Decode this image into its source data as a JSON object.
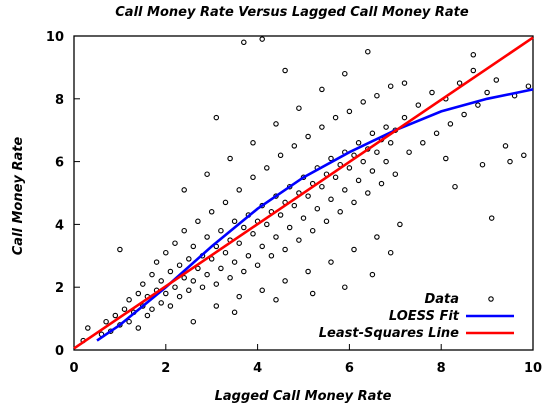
{
  "chart_data": {
    "type": "scatter",
    "title": "Call Money Rate Versus Lagged Call Money Rate",
    "xlabel": "Lagged Call Money Rate",
    "ylabel": "Call Money Rate",
    "xlim": [
      0,
      10
    ],
    "ylim": [
      0,
      10
    ],
    "xticks": [
      "0",
      "2",
      "4",
      "6",
      "8",
      "10"
    ],
    "yticks": [
      "0",
      "2",
      "4",
      "6",
      "8",
      "10"
    ],
    "grid": false,
    "legend_position": "bottom-right",
    "legend": [
      "Data",
      "LOESS Fit",
      "Least-Squares Line"
    ],
    "colors": {
      "data": "#000000",
      "loess": "#0000ff",
      "least_squares": "#ff0000"
    },
    "series": [
      {
        "name": "Data",
        "kind": "scatter",
        "points": [
          [
            0.2,
            0.3
          ],
          [
            0.3,
            0.7
          ],
          [
            0.6,
            0.5
          ],
          [
            0.7,
            0.9
          ],
          [
            0.8,
            0.6
          ],
          [
            0.9,
            1.1
          ],
          [
            1.0,
            0.8
          ],
          [
            1.0,
            3.2
          ],
          [
            1.1,
            1.3
          ],
          [
            1.2,
            0.9
          ],
          [
            1.2,
            1.6
          ],
          [
            1.3,
            1.2
          ],
          [
            1.4,
            1.8
          ],
          [
            1.4,
            0.7
          ],
          [
            1.5,
            1.4
          ],
          [
            1.5,
            2.1
          ],
          [
            1.6,
            1.1
          ],
          [
            1.6,
            1.7
          ],
          [
            1.7,
            2.4
          ],
          [
            1.7,
            1.3
          ],
          [
            1.8,
            1.9
          ],
          [
            1.8,
            2.8
          ],
          [
            1.9,
            1.5
          ],
          [
            1.9,
            2.2
          ],
          [
            2.0,
            1.8
          ],
          [
            2.0,
            3.1
          ],
          [
            2.1,
            2.5
          ],
          [
            2.1,
            1.4
          ],
          [
            2.2,
            2.0
          ],
          [
            2.2,
            3.4
          ],
          [
            2.3,
            2.7
          ],
          [
            2.3,
            1.7
          ],
          [
            2.4,
            2.3
          ],
          [
            2.4,
            3.8
          ],
          [
            2.5,
            2.9
          ],
          [
            2.5,
            1.9
          ],
          [
            2.6,
            3.3
          ],
          [
            2.6,
            2.2
          ],
          [
            2.7,
            2.6
          ],
          [
            2.7,
            4.1
          ],
          [
            2.8,
            3.0
          ],
          [
            2.8,
            2.0
          ],
          [
            2.9,
            3.6
          ],
          [
            2.9,
            2.4
          ],
          [
            3.0,
            2.9
          ],
          [
            3.0,
            4.4
          ],
          [
            3.1,
            3.3
          ],
          [
            3.1,
            2.1
          ],
          [
            3.2,
            3.8
          ],
          [
            3.2,
            2.6
          ],
          [
            3.3,
            3.1
          ],
          [
            3.3,
            4.7
          ],
          [
            3.4,
            3.5
          ],
          [
            3.4,
            2.3
          ],
          [
            3.5,
            4.1
          ],
          [
            3.5,
            2.8
          ],
          [
            3.6,
            3.4
          ],
          [
            3.6,
            5.1
          ],
          [
            3.7,
            3.9
          ],
          [
            3.7,
            2.5
          ],
          [
            3.8,
            4.3
          ],
          [
            3.8,
            3.0
          ],
          [
            3.9,
            3.7
          ],
          [
            3.9,
            5.5
          ],
          [
            4.0,
            4.1
          ],
          [
            4.0,
            2.7
          ],
          [
            4.1,
            4.6
          ],
          [
            4.1,
            3.3
          ],
          [
            4.2,
            4.0
          ],
          [
            4.2,
            5.8
          ],
          [
            4.3,
            4.4
          ],
          [
            4.3,
            3.0
          ],
          [
            4.4,
            4.9
          ],
          [
            4.4,
            3.6
          ],
          [
            4.5,
            4.3
          ],
          [
            4.5,
            6.2
          ],
          [
            4.6,
            4.7
          ],
          [
            4.6,
            3.2
          ],
          [
            4.7,
            5.2
          ],
          [
            4.7,
            3.9
          ],
          [
            4.8,
            4.6
          ],
          [
            4.8,
            6.5
          ],
          [
            4.9,
            5.0
          ],
          [
            4.9,
            3.5
          ],
          [
            5.0,
            5.5
          ],
          [
            5.0,
            4.2
          ],
          [
            5.1,
            4.9
          ],
          [
            5.1,
            6.8
          ],
          [
            5.2,
            5.3
          ],
          [
            5.2,
            3.8
          ],
          [
            5.3,
            5.8
          ],
          [
            5.3,
            4.5
          ],
          [
            5.4,
            5.2
          ],
          [
            5.4,
            7.1
          ],
          [
            5.5,
            5.6
          ],
          [
            5.5,
            4.1
          ],
          [
            5.6,
            6.1
          ],
          [
            5.6,
            4.8
          ],
          [
            5.7,
            5.5
          ],
          [
            5.7,
            7.4
          ],
          [
            5.8,
            5.9
          ],
          [
            5.8,
            4.4
          ],
          [
            5.9,
            6.3
          ],
          [
            5.9,
            5.1
          ],
          [
            6.0,
            5.8
          ],
          [
            6.0,
            7.6
          ],
          [
            6.1,
            6.2
          ],
          [
            6.1,
            4.7
          ],
          [
            6.2,
            6.6
          ],
          [
            6.2,
            5.4
          ],
          [
            6.3,
            6.0
          ],
          [
            6.3,
            7.9
          ],
          [
            6.4,
            6.4
          ],
          [
            6.4,
            5.0
          ],
          [
            6.5,
            6.9
          ],
          [
            6.5,
            5.7
          ],
          [
            6.6,
            6.3
          ],
          [
            6.6,
            8.1
          ],
          [
            6.7,
            6.7
          ],
          [
            6.7,
            5.3
          ],
          [
            6.8,
            7.1
          ],
          [
            6.8,
            6.0
          ],
          [
            6.9,
            6.6
          ],
          [
            6.9,
            8.4
          ],
          [
            7.0,
            7.0
          ],
          [
            7.0,
            5.6
          ],
          [
            7.2,
            7.4
          ],
          [
            7.3,
            6.3
          ],
          [
            7.5,
            7.8
          ],
          [
            7.6,
            6.6
          ],
          [
            7.8,
            8.2
          ],
          [
            7.9,
            6.9
          ],
          [
            8.1,
            8.0
          ],
          [
            8.2,
            7.2
          ],
          [
            8.4,
            8.5
          ],
          [
            8.5,
            7.5
          ],
          [
            8.7,
            8.9
          ],
          [
            8.8,
            7.8
          ],
          [
            9.0,
            8.2
          ],
          [
            9.2,
            8.6
          ],
          [
            2.6,
            0.9
          ],
          [
            3.1,
            1.4
          ],
          [
            3.6,
            1.7
          ],
          [
            4.1,
            1.9
          ],
          [
            4.6,
            2.2
          ],
          [
            5.1,
            2.5
          ],
          [
            5.6,
            2.8
          ],
          [
            6.1,
            3.2
          ],
          [
            6.6,
            3.6
          ],
          [
            7.1,
            4.0
          ],
          [
            2.4,
            5.1
          ],
          [
            2.9,
            5.6
          ],
          [
            3.4,
            6.1
          ],
          [
            3.9,
            6.6
          ],
          [
            4.4,
            7.2
          ],
          [
            4.9,
            7.7
          ],
          [
            5.4,
            8.3
          ],
          [
            5.9,
            8.8
          ],
          [
            4.1,
            9.9
          ],
          [
            3.7,
            9.8
          ],
          [
            3.1,
            7.4
          ],
          [
            4.6,
            8.9
          ],
          [
            6.4,
            9.5
          ],
          [
            7.2,
            8.5
          ],
          [
            8.7,
            9.4
          ],
          [
            8.1,
            6.1
          ],
          [
            8.9,
            5.9
          ],
          [
            9.1,
            4.2
          ],
          [
            9.4,
            6.5
          ],
          [
            9.8,
            6.2
          ],
          [
            9.9,
            8.4
          ],
          [
            9.6,
            8.1
          ],
          [
            9.5,
            6.0
          ],
          [
            8.3,
            5.2
          ],
          [
            6.9,
            3.1
          ],
          [
            6.5,
            2.4
          ],
          [
            5.9,
            2.0
          ],
          [
            5.2,
            1.8
          ],
          [
            4.4,
            1.6
          ],
          [
            3.5,
            1.2
          ]
        ]
      },
      {
        "name": "LOESS Fit",
        "kind": "line",
        "points": [
          [
            0.5,
            0.3
          ],
          [
            1.0,
            0.8
          ],
          [
            2.0,
            2.0
          ],
          [
            3.0,
            3.3
          ],
          [
            4.0,
            4.5
          ],
          [
            5.0,
            5.5
          ],
          [
            6.0,
            6.3
          ],
          [
            7.0,
            7.0
          ],
          [
            8.0,
            7.6
          ],
          [
            9.0,
            8.0
          ],
          [
            10.0,
            8.3
          ]
        ]
      },
      {
        "name": "Least-Squares Line",
        "kind": "line",
        "points": [
          [
            0,
            0.05
          ],
          [
            10,
            9.95
          ]
        ]
      }
    ]
  }
}
